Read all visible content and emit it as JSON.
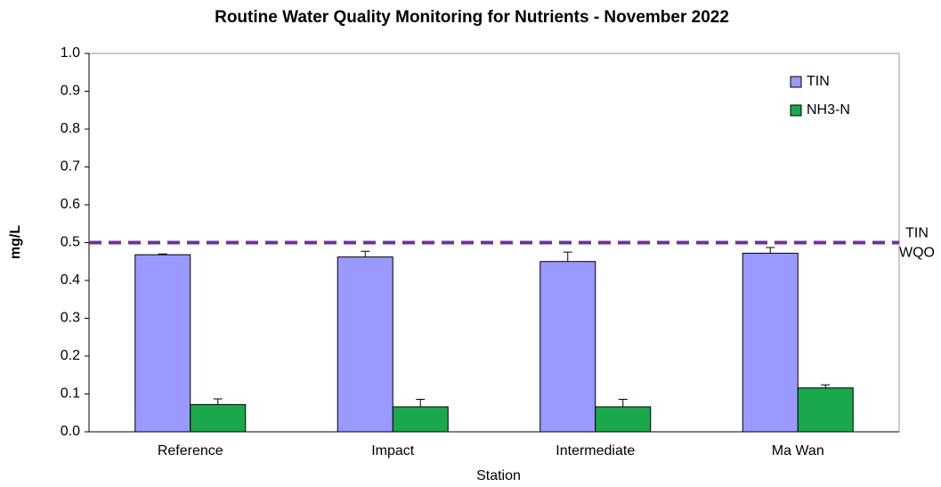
{
  "chart_data": {
    "type": "bar",
    "title": "Routine Water Quality Monitoring for Nutrients - November 2022",
    "x_label": "Station",
    "y_label": "mg/L",
    "categories": [
      "Reference",
      "Impact",
      "Intermediate",
      "Ma Wan"
    ],
    "series": [
      {
        "name": "TIN",
        "color": "#9999ff",
        "values": [
          0.468,
          0.462,
          0.45,
          0.472
        ],
        "errors": [
          0.002,
          0.015,
          0.025,
          0.015
        ]
      },
      {
        "name": "NH3-N",
        "color": "#1aa84a",
        "values": [
          0.072,
          0.066,
          0.066,
          0.116
        ],
        "errors": [
          0.015,
          0.02,
          0.02,
          0.008
        ]
      }
    ],
    "ylim": [
      0,
      1
    ],
    "yticks": [
      {
        "value": 0,
        "label": "0.0"
      },
      0.1,
      0.2,
      0.3,
      0.4,
      0.5,
      0.6,
      0.7,
      0.8,
      0.9,
      {
        "value": 1,
        "label": "1.0"
      }
    ],
    "reference_line": {
      "value": 0.5,
      "label_lines": [
        "TIN",
        "WQO"
      ],
      "color": "#7030a0"
    },
    "legend": "top-right"
  }
}
